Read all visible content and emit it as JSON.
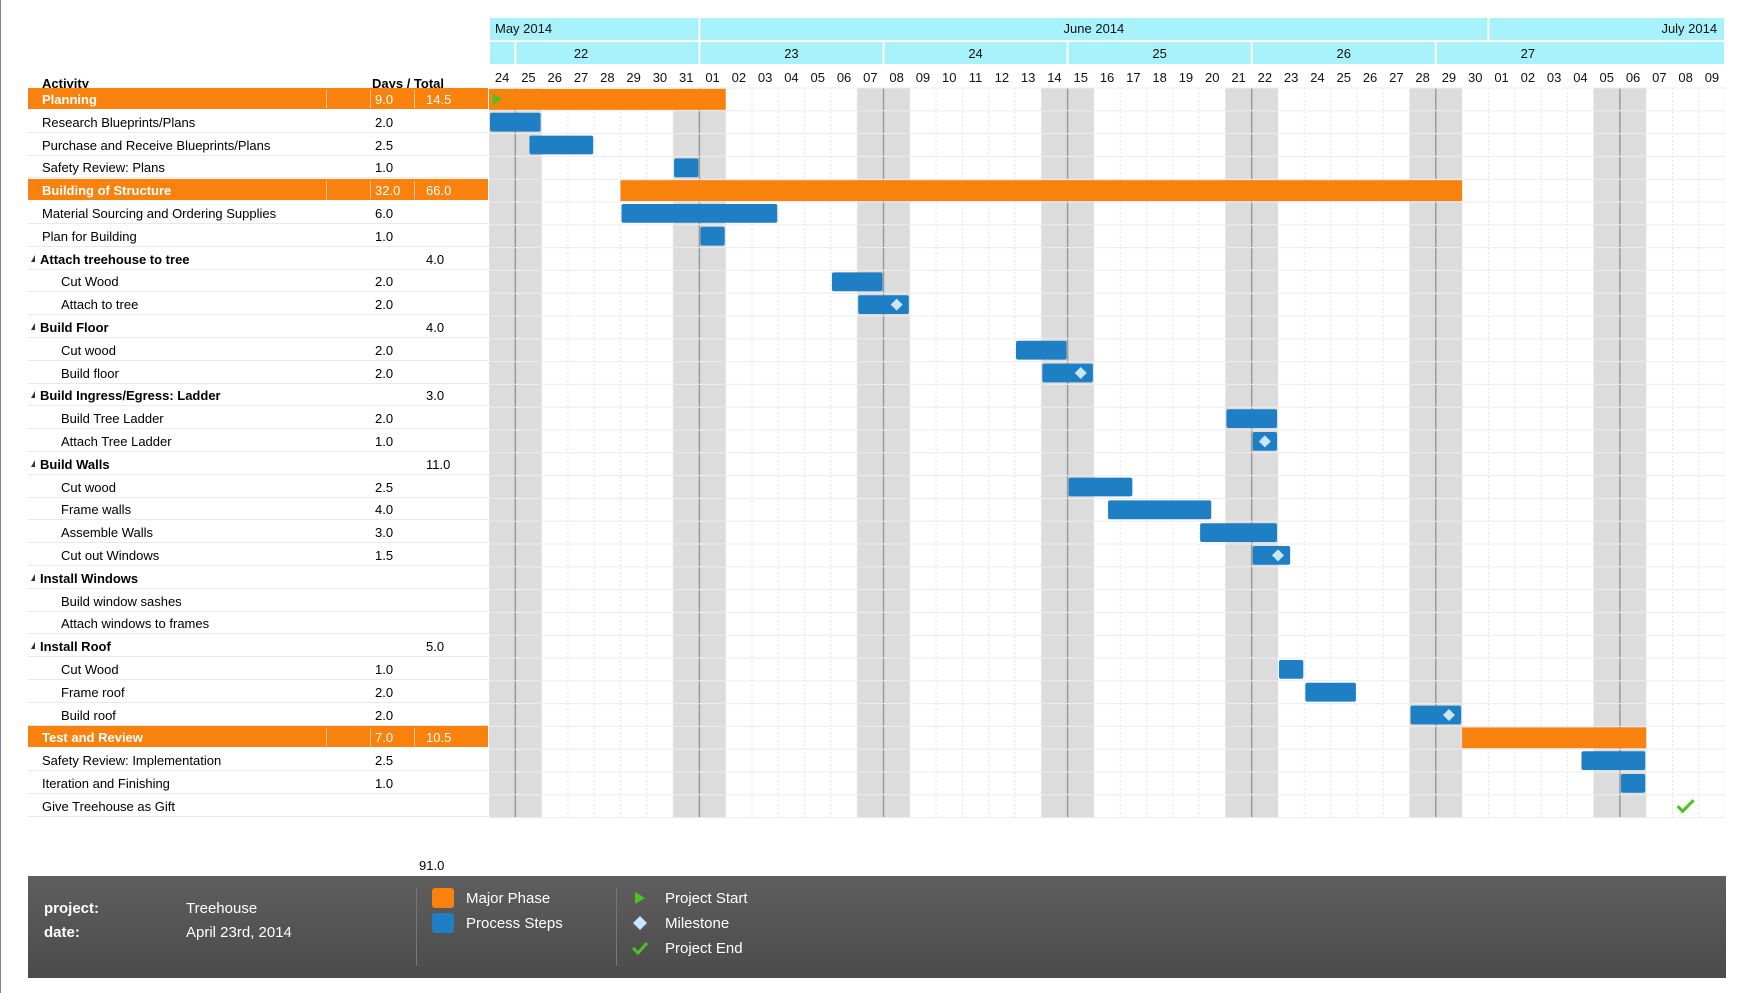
{
  "header": {
    "activity_label": "Activity",
    "days_total_label": "Days / Total"
  },
  "colors": {
    "phase": "#f9820f",
    "step": "#1f7fc4",
    "weekend": "#dcdcdc",
    "month_header": "#a8f2fb",
    "milestone": "#c9e6fb",
    "start": "#4ec21f",
    "end": "#4ec21f",
    "footer": "#555555"
  },
  "timeline": {
    "months": [
      {
        "label": "May 2014",
        "start_day": 0,
        "days": 8
      },
      {
        "label": "June 2014",
        "start_day": 8,
        "days": 30
      },
      {
        "label": "July 2014",
        "start_day": 38,
        "days": 9
      }
    ],
    "weeks": [
      {
        "label": "22",
        "start_day": 1,
        "days": 5
      },
      {
        "label": "23",
        "start_day": 8,
        "days": 7
      },
      {
        "label": "24",
        "start_day": 15,
        "days": 7
      },
      {
        "label": "25",
        "start_day": 22,
        "days": 7
      },
      {
        "label": "26",
        "start_day": 29,
        "days": 7
      },
      {
        "label": "27",
        "start_day": 36,
        "days": 7
      }
    ],
    "days": [
      "24",
      "25",
      "26",
      "27",
      "28",
      "29",
      "30",
      "31",
      "01",
      "02",
      "03",
      "04",
      "05",
      "06",
      "07",
      "08",
      "09",
      "10",
      "11",
      "12",
      "13",
      "14",
      "15",
      "16",
      "17",
      "18",
      "19",
      "20",
      "21",
      "22",
      "23",
      "24",
      "25",
      "26",
      "27",
      "28",
      "29",
      "30",
      "01",
      "02",
      "03",
      "04",
      "05",
      "06",
      "07",
      "08",
      "09"
    ],
    "weekend_days": [
      0,
      1,
      7,
      8,
      14,
      15,
      21,
      22,
      28,
      29,
      35,
      36,
      42,
      43
    ]
  },
  "rows": [
    {
      "type": "phase",
      "name": "Planning",
      "days": "9.0",
      "total": "14.5",
      "bar": {
        "kind": "phase",
        "start": 0,
        "dur": 9
      },
      "marker": "start"
    },
    {
      "type": "task",
      "name": "Research Blueprints/Plans",
      "days": "2.0",
      "bar": {
        "kind": "step",
        "start": 0,
        "dur": 2
      }
    },
    {
      "type": "task",
      "name": "Purchase and Receive Blueprints/Plans",
      "days": "2.5",
      "bar": {
        "kind": "step",
        "start": 1.5,
        "dur": 2.5
      }
    },
    {
      "type": "task",
      "name": "Safety Review: Plans",
      "days": "1.0",
      "bar": {
        "kind": "step",
        "start": 7,
        "dur": 1
      }
    },
    {
      "type": "phase",
      "name": "Building of Structure",
      "days": "32.0",
      "total": "66.0",
      "bar": {
        "kind": "phase",
        "start": 5,
        "dur": 32
      }
    },
    {
      "type": "task",
      "name": "Material Sourcing and Ordering Supplies",
      "days": "6.0",
      "bar": {
        "kind": "step",
        "start": 5,
        "dur": 6
      }
    },
    {
      "type": "task",
      "name": "Plan for Building",
      "days": "1.0",
      "bar": {
        "kind": "step",
        "start": 8,
        "dur": 1
      }
    },
    {
      "type": "group",
      "name": "Attach treehouse to tree",
      "total": "4.0"
    },
    {
      "type": "sub",
      "name": "Cut Wood",
      "days": "2.0",
      "bar": {
        "kind": "step",
        "start": 13,
        "dur": 2
      }
    },
    {
      "type": "sub",
      "name": "Attach to tree",
      "days": "2.0",
      "bar": {
        "kind": "step",
        "start": 14,
        "dur": 2
      },
      "marker": "milestone"
    },
    {
      "type": "group",
      "name": "Build Floor",
      "total": "4.0"
    },
    {
      "type": "sub",
      "name": "Cut wood",
      "days": "2.0",
      "bar": {
        "kind": "step",
        "start": 20,
        "dur": 2
      }
    },
    {
      "type": "sub",
      "name": "Build floor",
      "days": "2.0",
      "bar": {
        "kind": "step",
        "start": 21,
        "dur": 2
      },
      "marker": "milestone"
    },
    {
      "type": "group",
      "name": "Build Ingress/Egress: Ladder",
      "total": "3.0"
    },
    {
      "type": "sub",
      "name": "Build Tree Ladder",
      "days": "2.0",
      "bar": {
        "kind": "step",
        "start": 28,
        "dur": 2
      }
    },
    {
      "type": "sub",
      "name": "Attach Tree Ladder",
      "days": "1.0",
      "bar": {
        "kind": "step",
        "start": 29,
        "dur": 1
      },
      "marker": "milestone"
    },
    {
      "type": "group",
      "name": "Build Walls",
      "total": "11.0"
    },
    {
      "type": "sub",
      "name": "Cut wood",
      "days": "2.5",
      "bar": {
        "kind": "step",
        "start": 22,
        "dur": 2.5
      }
    },
    {
      "type": "sub",
      "name": "Frame walls",
      "days": "4.0",
      "bar": {
        "kind": "step",
        "start": 23.5,
        "dur": 4
      }
    },
    {
      "type": "sub",
      "name": "Assemble Walls",
      "days": "3.0",
      "bar": {
        "kind": "step",
        "start": 27,
        "dur": 3
      }
    },
    {
      "type": "sub",
      "name": "Cut out Windows",
      "days": "1.5",
      "bar": {
        "kind": "step",
        "start": 29,
        "dur": 1.5
      },
      "marker": "milestone"
    },
    {
      "type": "group",
      "name": "Install Windows",
      "total": ""
    },
    {
      "type": "sub",
      "name": "Build window sashes",
      "days": ""
    },
    {
      "type": "sub",
      "name": "Attach windows to frames",
      "days": ""
    },
    {
      "type": "group",
      "name": "Install Roof",
      "total": "5.0"
    },
    {
      "type": "sub",
      "name": "Cut Wood",
      "days": "1.0",
      "bar": {
        "kind": "step",
        "start": 30,
        "dur": 1
      }
    },
    {
      "type": "sub",
      "name": "Frame roof",
      "days": "2.0",
      "bar": {
        "kind": "step",
        "start": 31,
        "dur": 2
      }
    },
    {
      "type": "sub",
      "name": "Build roof",
      "days": "2.0",
      "bar": {
        "kind": "step",
        "start": 35,
        "dur": 2
      },
      "marker": "milestone"
    },
    {
      "type": "phase",
      "name": "Test and Review",
      "days": "7.0",
      "total": "10.5",
      "bar": {
        "kind": "phase",
        "start": 37,
        "dur": 7
      }
    },
    {
      "type": "task",
      "name": "Safety Review: Implementation",
      "days": "2.5",
      "bar": {
        "kind": "step",
        "start": 41.5,
        "dur": 2.5
      }
    },
    {
      "type": "task",
      "name": "Iteration and Finishing",
      "days": "1.0",
      "bar": {
        "kind": "step",
        "start": 43,
        "dur": 1
      }
    },
    {
      "type": "task",
      "name": "Give Treehouse as Gift",
      "days": "",
      "marker": "end",
      "marker_day": 45
    }
  ],
  "grand_total": "91.0",
  "footer": {
    "project_label": "project:",
    "project_value": "Treehouse",
    "date_label": "date:",
    "date_value": "April 23rd, 2014",
    "legend_phase": "Major Phase",
    "legend_steps": "Process Steps",
    "legend_start": "Project Start",
    "legend_milestone": "Milestone",
    "legend_end": "Project End"
  }
}
